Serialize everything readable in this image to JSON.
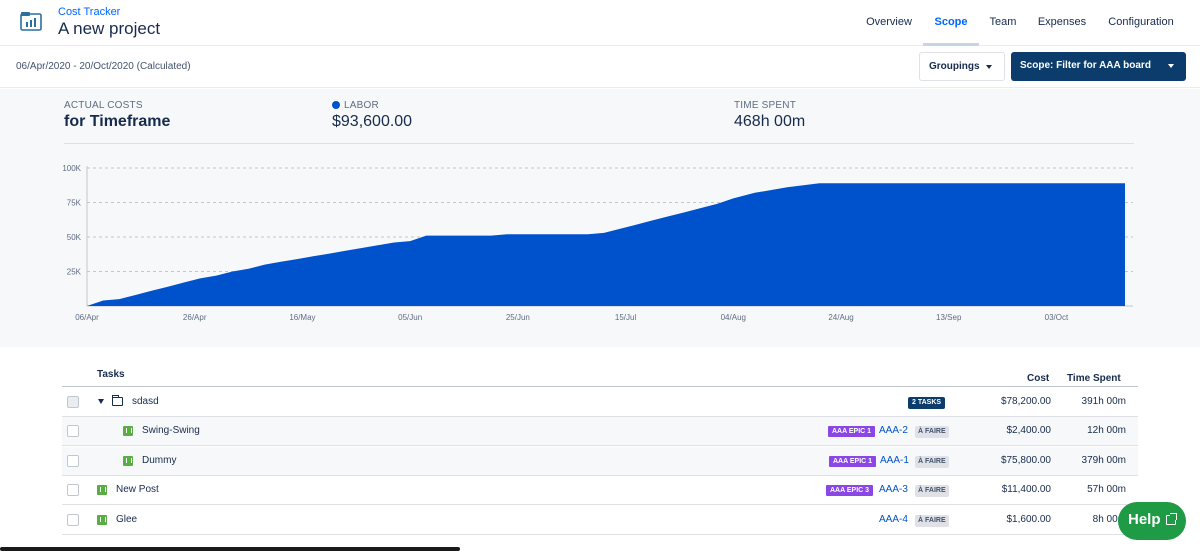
{
  "header": {
    "app_name": "Cost Tracker",
    "project_title": "A new project",
    "tabs": [
      {
        "label": "Overview",
        "active": false
      },
      {
        "label": "Scope",
        "active": true
      },
      {
        "label": "Team",
        "active": false
      },
      {
        "label": "Expenses",
        "active": false
      },
      {
        "label": "Configuration",
        "active": false
      }
    ]
  },
  "subbar": {
    "date_range": "06/Apr/2020 - 20/Oct/2020 (Calculated)",
    "groupings_label": "Groupings",
    "scope_button_label": "Scope: Filter for AAA board"
  },
  "summary": {
    "actual_costs_label": "ACTUAL COSTS",
    "actual_costs_value": "for Timeframe",
    "labor_label": "LABOR",
    "labor_value": "$93,600.00",
    "time_label": "TIME SPENT",
    "time_value": "468h 00m",
    "labor_color": "#0052cc"
  },
  "chart_data": {
    "type": "area",
    "series": [
      {
        "name": "LABOR",
        "color": "#0052cc"
      }
    ],
    "ylim": [
      0,
      100000
    ],
    "yticks": [
      {
        "value": 25000,
        "label": "25K"
      },
      {
        "value": 50000,
        "label": "50K"
      },
      {
        "value": 75000,
        "label": "75K"
      },
      {
        "value": 100000,
        "label": "100K"
      }
    ],
    "xticks": [
      "06/Apr",
      "26/Apr",
      "16/May",
      "05/Jun",
      "25/Jun",
      "15/Jul",
      "04/Aug",
      "24/Aug",
      "13/Sep",
      "03/Oct"
    ],
    "x": [
      "06/Apr",
      "09/Apr",
      "12/Apr",
      "15/Apr",
      "18/Apr",
      "21/Apr",
      "24/Apr",
      "27/Apr",
      "30/Apr",
      "03/May",
      "06/May",
      "09/May",
      "12/May",
      "15/May",
      "18/May",
      "21/May",
      "24/May",
      "27/May",
      "30/May",
      "02/Jun",
      "05/Jun",
      "08/Jun",
      "11/Jun",
      "14/Jun",
      "17/Jun",
      "20/Jun",
      "23/Jun",
      "26/Jun",
      "29/Jun",
      "02/Jul",
      "05/Jul",
      "08/Jul",
      "11/Jul",
      "14/Jul",
      "17/Jul",
      "20/Jul",
      "23/Jul",
      "26/Jul",
      "29/Jul",
      "01/Aug",
      "04/Aug",
      "08/Aug",
      "14/Aug",
      "20/Aug",
      "26/Aug",
      "01/Sep",
      "07/Sep",
      "13/Sep",
      "19/Sep",
      "25/Sep",
      "01/Oct",
      "07/Oct",
      "13/Oct",
      "19/Oct",
      "20/Oct"
    ],
    "values": [
      0,
      4000,
      5000,
      8000,
      11000,
      14000,
      17000,
      20000,
      22000,
      25000,
      27000,
      30000,
      32000,
      34000,
      36000,
      38000,
      40000,
      42000,
      44000,
      46000,
      47000,
      51000,
      51000,
      51000,
      51000,
      51000,
      52000,
      52000,
      52000,
      52000,
      52000,
      52000,
      53000,
      56000,
      59000,
      62000,
      65000,
      68000,
      71000,
      74000,
      78000,
      82000,
      86000,
      89000,
      89000,
      89000,
      89000,
      89000,
      89000,
      89000,
      89000,
      89000,
      89000,
      89000,
      93000
    ],
    "grid": true
  },
  "table": {
    "headers": {
      "tasks": "Tasks",
      "cost": "Cost",
      "time": "Time Spent"
    },
    "rows": [
      {
        "name": "sdasd",
        "badge": "2 TASKS",
        "cost": "$78,200.00",
        "time": "391h 00m"
      },
      {
        "name": "Swing-Swing",
        "epic": "AAA EPIC 1",
        "key": "AAA-2",
        "status": "À FAIRE",
        "cost": "$2,400.00",
        "time": "12h 00m"
      },
      {
        "name": "Dummy",
        "epic": "AAA EPIC 1",
        "key": "AAA-1",
        "status": "À FAIRE",
        "cost": "$75,800.00",
        "time": "379h 00m"
      },
      {
        "name": "New Post",
        "epic": "AAA EPIC 3",
        "key": "AAA-3",
        "status": "À FAIRE",
        "cost": "$11,400.00",
        "time": "57h 00m"
      },
      {
        "name": "Glee",
        "key": "AAA-4",
        "status": "À FAIRE",
        "cost": "$1,600.00",
        "time": "8h 00m"
      }
    ]
  },
  "help": {
    "label": "Help"
  }
}
